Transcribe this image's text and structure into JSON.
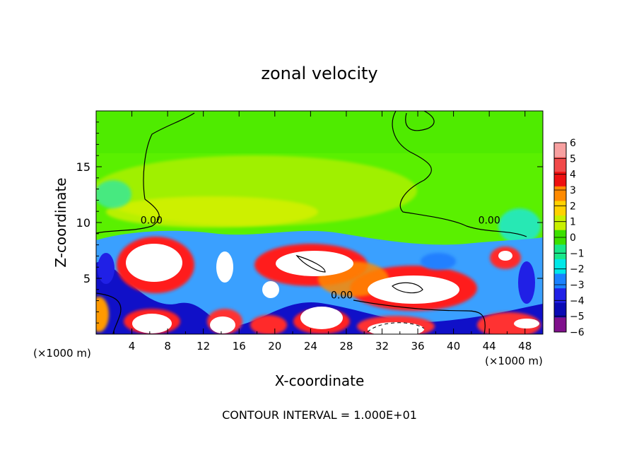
{
  "chart_data": {
    "type": "heatmap",
    "title": "zonal velocity",
    "xlabel": "X-coordinate",
    "ylabel": "Z-coordinate",
    "x_unit_label": "(×1000 m)",
    "y_unit_label": "(×1000 m)",
    "footer": "CONTOUR INTERVAL = 1.000E+01",
    "xlim": [
      0,
      50
    ],
    "ylim": [
      0,
      20
    ],
    "x_ticks": [
      "4",
      "8",
      "12",
      "16",
      "20",
      "24",
      "28",
      "32",
      "36",
      "40",
      "44",
      "48"
    ],
    "y_ticks": [
      "5",
      "10",
      "15"
    ],
    "x_tick_values": [
      4,
      8,
      12,
      16,
      20,
      24,
      28,
      32,
      36,
      40,
      44,
      48
    ],
    "y_tick_values": [
      5,
      10,
      15
    ],
    "colorbar": {
      "range": [
        -6,
        6
      ],
      "labels": [
        "6",
        "5",
        "4",
        "3",
        "2",
        "1",
        "0",
        "−1",
        "−2",
        "−3",
        "−4",
        "−5",
        "−6"
      ],
      "values": [
        6,
        5,
        4,
        3,
        2,
        1,
        0,
        -1,
        -2,
        -3,
        -4,
        -5,
        -6
      ],
      "colors": [
        "#f7a0a0",
        "#f24a4a",
        "#ee1010",
        "#ff8a00",
        "#ffd200",
        "#c8f000",
        "#3ce000",
        "#18e88a",
        "#00e8e8",
        "#1a82ff",
        "#2020e6",
        "#0a0ab4",
        "#80108c"
      ]
    },
    "contour_labels": [
      {
        "text": "0.00",
        "x": 6.2,
        "z": 9.9
      },
      {
        "text": "0.00",
        "x": 27.5,
        "z": 3.2
      },
      {
        "text": "0.00",
        "x": 44.0,
        "z": 9.9
      }
    ],
    "features": [
      {
        "kind": "positive-max",
        "x": 5.0,
        "z": 5.8,
        "value": 6
      },
      {
        "kind": "positive-max",
        "x": 24.5,
        "z": 6.2,
        "value": 6
      },
      {
        "kind": "positive-max",
        "x": 35.5,
        "z": 4.2,
        "value": 6
      },
      {
        "kind": "negative-min",
        "x": 15.5,
        "z": 2.5,
        "value": -6
      },
      {
        "kind": "negative-min",
        "x": 47.0,
        "z": 5.5,
        "value": -6
      }
    ]
  }
}
